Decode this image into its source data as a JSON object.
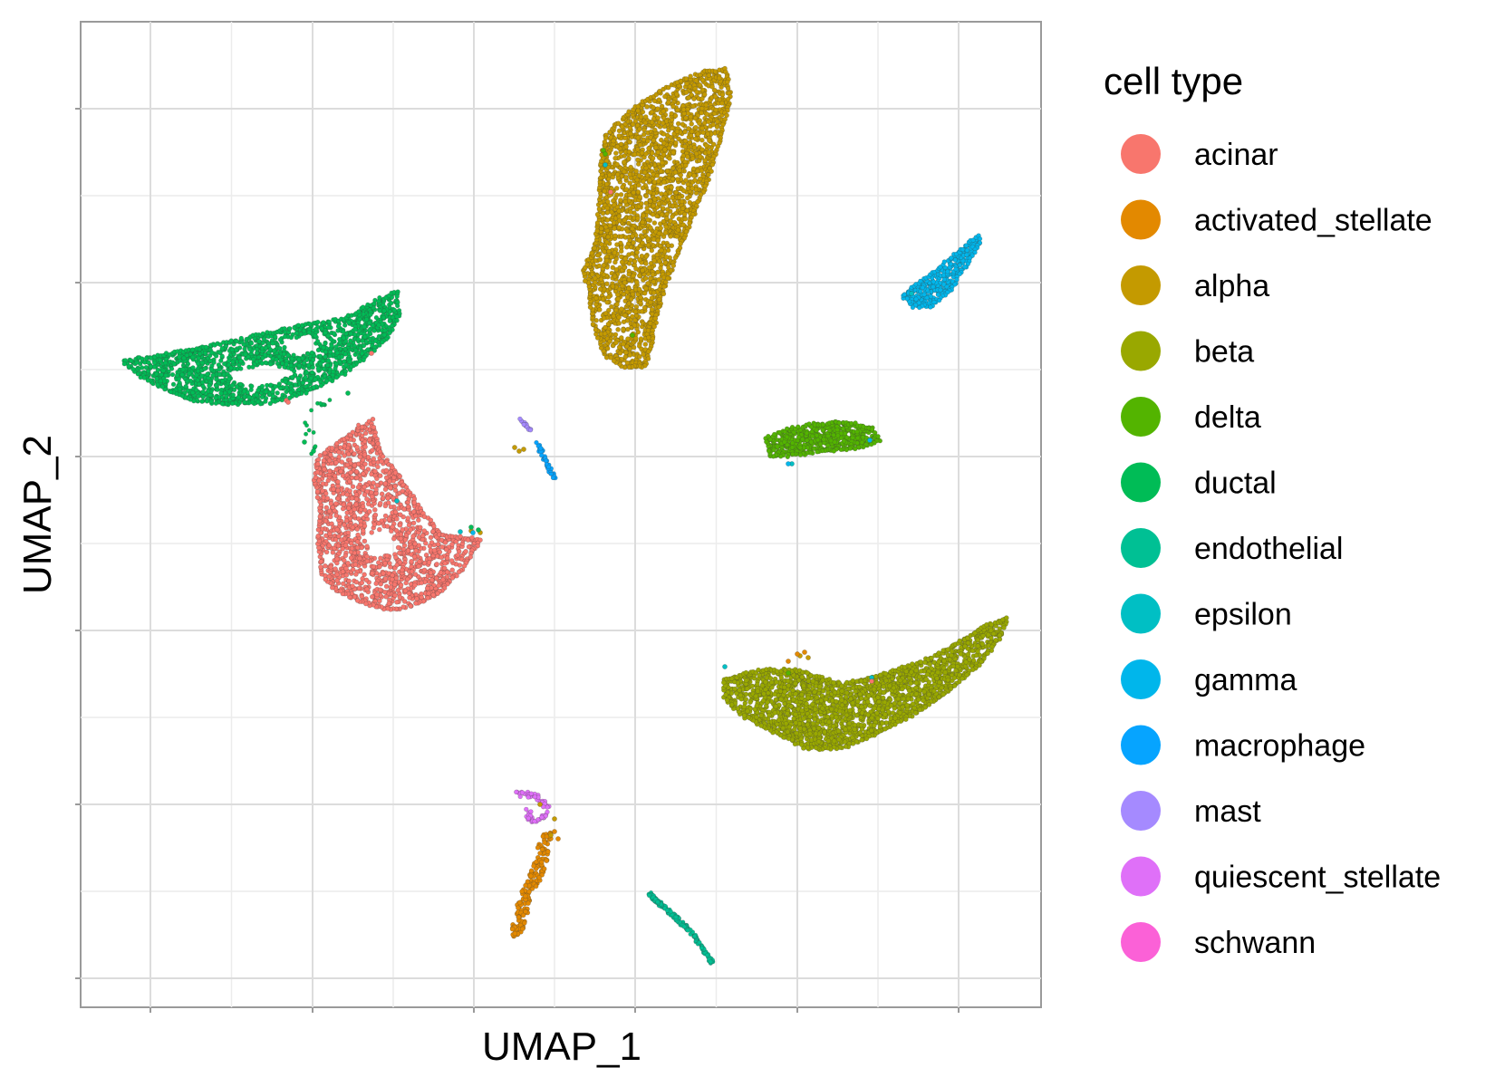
{
  "chart_data": {
    "type": "scatter",
    "title": "",
    "xlabel": "UMAP_1",
    "ylabel": "UMAP_2",
    "x_ticks_labeled": false,
    "y_ticks_labeled": false,
    "grid": true,
    "legend_position": "right",
    "legend_title": "cell type",
    "series": [
      {
        "name": "acinar",
        "color": "#F8766D"
      },
      {
        "name": "activated_stellate",
        "color": "#E38900"
      },
      {
        "name": "alpha",
        "color": "#C49A00"
      },
      {
        "name": "beta",
        "color": "#99A800"
      },
      {
        "name": "delta",
        "color": "#53B400"
      },
      {
        "name": "ductal",
        "color": "#00BC56"
      },
      {
        "name": "endothelial",
        "color": "#00C094"
      },
      {
        "name": "epsilon",
        "color": "#00BFC4"
      },
      {
        "name": "gamma",
        "color": "#00B6EB"
      },
      {
        "name": "macrophage",
        "color": "#06A4FF"
      },
      {
        "name": "mast",
        "color": "#A58AFF"
      },
      {
        "name": "quiescent_stellate",
        "color": "#DF70F8"
      },
      {
        "name": "schwann",
        "color": "#FB61D7"
      }
    ]
  }
}
